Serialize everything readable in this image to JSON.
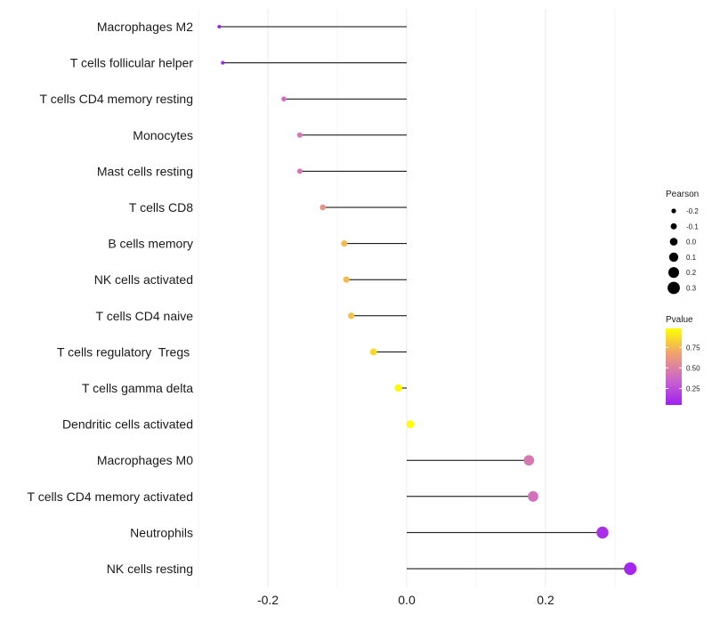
{
  "chart_data": {
    "type": "lollipop",
    "categories": [
      "Macrophages M2",
      "T cells follicular helper",
      "T cells CD4 memory resting",
      "Monocytes",
      "Mast cells resting",
      "T cells CD8",
      "B cells memory",
      "NK cells activated",
      "T cells CD4 naive",
      "T cells regulatory  Tregs ",
      "T cells gamma delta",
      "Dendritic cells activated",
      "Macrophages M0",
      "T cells CD4 memory activated",
      "Neutrophils",
      "NK cells resting"
    ],
    "pearson": [
      -0.27,
      -0.265,
      -0.177,
      -0.154,
      -0.154,
      -0.121,
      -0.09,
      -0.087,
      -0.08,
      -0.048,
      -0.012,
      0.005,
      0.176,
      0.182,
      0.282,
      0.322
    ],
    "pvalue": [
      0.05,
      0.07,
      0.4,
      0.45,
      0.45,
      0.6,
      0.75,
      0.76,
      0.78,
      0.86,
      0.96,
      0.98,
      0.45,
      0.42,
      0.12,
      0.08
    ],
    "xlim": [
      -0.3,
      0.33
    ],
    "x_ticks": [
      -0.2,
      0.0,
      0.2
    ],
    "x_tick_labels": [
      "-0.2",
      "0.0",
      "0.2"
    ],
    "xlabel": "",
    "ylabel": "",
    "legend_size": {
      "title": "Pearson",
      "values": [
        -0.2,
        -0.1,
        0.0,
        0.1,
        0.2,
        0.3
      ],
      "labels": [
        "-0.2",
        "-0.1",
        "0.0",
        "0.1",
        "0.2",
        "0.3"
      ]
    },
    "legend_color": {
      "title": "Pvalue",
      "range": [
        0.05,
        0.98
      ],
      "ticks": [
        0.25,
        0.5,
        0.75
      ],
      "labels": [
        "0.25",
        "0.50",
        "0.75"
      ],
      "colors": [
        "#a020f0",
        "#cc66cc",
        "#f0a070",
        "#ffff00"
      ]
    },
    "legend_position": "right",
    "grid": true
  }
}
